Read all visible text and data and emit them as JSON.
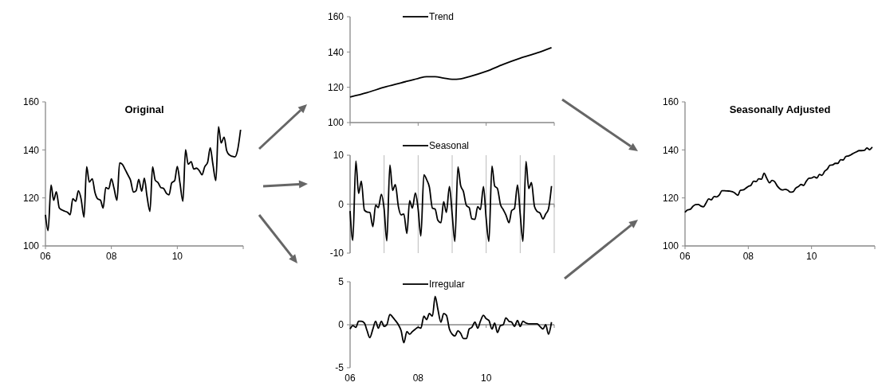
{
  "chart_data": [
    {
      "type": "line",
      "title": "Original",
      "x": [
        2006,
        2006.08,
        2006.17,
        2006.25,
        2006.33,
        2006.42,
        2006.5,
        2006.58,
        2006.67,
        2006.75,
        2006.83,
        2006.92,
        2007,
        2007.08,
        2007.17,
        2007.25,
        2007.33,
        2007.42,
        2007.5,
        2007.58,
        2007.67,
        2007.75,
        2007.83,
        2007.92,
        2008,
        2008.08,
        2008.17,
        2008.25,
        2008.33,
        2008.42,
        2008.5,
        2008.58,
        2008.67,
        2008.75,
        2008.83,
        2008.92,
        2009,
        2009.08,
        2009.17,
        2009.25,
        2009.33,
        2009.42,
        2009.5,
        2009.58,
        2009.67,
        2009.75,
        2009.83,
        2009.92,
        2010,
        2010.08,
        2010.17,
        2010.25,
        2010.33,
        2010.42,
        2010.5,
        2010.58,
        2010.67,
        2010.75,
        2010.83,
        2010.92,
        2011,
        2011.08,
        2011.17,
        2011.25,
        2011.33,
        2011.42,
        2011.5,
        2011.58,
        2011.67,
        2011.75,
        2011.83,
        2011.92
      ],
      "series": [
        {
          "color": "#000000",
          "values": [
            113,
            106.4,
            125.4,
            119,
            122.6,
            115.8,
            115,
            114.5,
            114,
            113,
            119.7,
            118.6,
            123,
            119.7,
            112,
            133,
            126.6,
            128,
            122.4,
            119.7,
            119,
            115.8,
            124.3,
            123.8,
            128,
            124,
            119,
            134.6,
            134,
            131.8,
            129.6,
            127.4,
            122.4,
            123,
            127.7,
            122.8,
            128.2,
            120.8,
            114.4,
            132.9,
            127.4,
            126.3,
            124.3,
            124,
            121.9,
            121.3,
            126.3,
            127.2,
            133.1,
            126.3,
            118.6,
            140.1,
            134,
            135.1,
            132,
            132.4,
            131.3,
            129.6,
            132.9,
            134.8,
            140.9,
            134,
            127.2,
            149.7,
            142.9,
            145.3,
            139.6,
            137.9,
            137.3,
            137.1,
            140,
            148.4
          ]
        }
      ],
      "xlim": [
        2006,
        2012
      ],
      "xticks": [
        {
          "value": 2006,
          "label": "06"
        },
        {
          "value": 2008,
          "label": "08"
        },
        {
          "value": 2010,
          "label": "10"
        },
        {
          "value": 2012,
          "label": null
        }
      ],
      "ylim": [
        100,
        160
      ],
      "yticks": [
        100,
        120,
        140,
        160
      ]
    },
    {
      "type": "line",
      "x": [
        2006,
        2006.5,
        2007,
        2007.5,
        2008,
        2008.25,
        2008.5,
        2008.75,
        2009,
        2009.25,
        2009.5,
        2010,
        2010.5,
        2011,
        2011.5,
        2011.92
      ],
      "series": [
        {
          "name": "Trend",
          "color": "#000000",
          "values": [
            114.5,
            117,
            120,
            122.5,
            125,
            126,
            126,
            125.2,
            124.5,
            124.8,
            126,
            129,
            133,
            136.5,
            139.5,
            142.5
          ]
        }
      ],
      "xlim": [
        2006,
        2012
      ],
      "xticks": [
        {
          "value": 2006,
          "label": null
        },
        {
          "value": 2008,
          "label": null
        },
        {
          "value": 2010,
          "label": null
        },
        {
          "value": 2012,
          "label": null
        }
      ],
      "ylim": [
        100,
        160
      ],
      "yticks": [
        100,
        120,
        140,
        160
      ],
      "legend": "top",
      "tick_labels": "y"
    },
    {
      "type": "line",
      "x": [
        2006,
        2006.08,
        2006.17,
        2006.25,
        2006.33,
        2006.42,
        2006.5,
        2006.58,
        2006.67,
        2006.75,
        2006.83,
        2006.92,
        2007,
        2007.08,
        2007.17,
        2007.25,
        2007.33,
        2007.42,
        2007.5,
        2007.58,
        2007.67,
        2007.75,
        2007.83,
        2007.92,
        2008,
        2008.08,
        2008.17,
        2008.25,
        2008.33,
        2008.42,
        2008.5,
        2008.58,
        2008.67,
        2008.75,
        2008.83,
        2008.92,
        2009,
        2009.08,
        2009.17,
        2009.25,
        2009.33,
        2009.42,
        2009.5,
        2009.58,
        2009.67,
        2009.75,
        2009.83,
        2009.92,
        2010,
        2010.08,
        2010.17,
        2010.25,
        2010.33,
        2010.42,
        2010.5,
        2010.58,
        2010.67,
        2010.75,
        2010.83,
        2010.92,
        2011,
        2011.08,
        2011.17,
        2011.25,
        2011.33,
        2011.42,
        2011.5,
        2011.58,
        2011.67,
        2011.75,
        2011.83,
        2011.92
      ],
      "series": [
        {
          "name": "Seasonal",
          "color": "#000000",
          "values": [
            -1.4,
            -7.4,
            8.8,
            2.2,
            4.7,
            -1.2,
            -1.6,
            -1.7,
            -4.6,
            -0.2,
            -0.7,
            2,
            -1,
            -7.5,
            8,
            2.8,
            4,
            -0.5,
            -2.2,
            -2,
            -6,
            0.7,
            -0.8,
            2.3,
            -1,
            -6.5,
            6,
            5,
            3.5,
            -0.8,
            -1,
            -3.3,
            -3.8,
            0.5,
            -1.7,
            3.6,
            -2,
            -7.6,
            7.6,
            3.8,
            2.6,
            -0.3,
            -0.7,
            -3,
            -3.1,
            -0.5,
            -1.1,
            3.6,
            -3,
            -7.6,
            7.8,
            3.7,
            3.2,
            -0.1,
            -1.1,
            -2.2,
            -3.8,
            -1.3,
            -0.9,
            3.9,
            -2,
            -7.6,
            8.7,
            3.2,
            4.4,
            -0.5,
            -1.5,
            -1.8,
            -3,
            -2,
            -1,
            3.7
          ]
        }
      ],
      "xlim": [
        2006,
        2012
      ],
      "xticks": [
        {
          "value": 2006,
          "label": null
        },
        {
          "value": 2007,
          "label": null
        },
        {
          "value": 2008,
          "label": null
        },
        {
          "value": 2009,
          "label": null
        },
        {
          "value": 2010,
          "label": null
        },
        {
          "value": 2011,
          "label": null
        },
        {
          "value": 2012,
          "label": null
        }
      ],
      "ylim": [
        -10,
        10
      ],
      "yticks": [
        -10,
        0,
        10
      ],
      "legend": "top",
      "grid": "x",
      "tick_labels": "y"
    },
    {
      "type": "line",
      "x": [
        2006,
        2006.08,
        2006.17,
        2006.25,
        2006.33,
        2006.42,
        2006.5,
        2006.58,
        2006.67,
        2006.75,
        2006.83,
        2006.92,
        2007,
        2007.08,
        2007.17,
        2007.25,
        2007.33,
        2007.42,
        2007.5,
        2007.58,
        2007.67,
        2007.75,
        2007.83,
        2007.92,
        2008,
        2008.08,
        2008.17,
        2008.25,
        2008.33,
        2008.42,
        2008.5,
        2008.58,
        2008.67,
        2008.75,
        2008.83,
        2008.92,
        2009,
        2009.08,
        2009.17,
        2009.25,
        2009.33,
        2009.42,
        2009.5,
        2009.58,
        2009.67,
        2009.75,
        2009.83,
        2009.92,
        2010,
        2010.08,
        2010.17,
        2010.25,
        2010.33,
        2010.42,
        2010.5,
        2010.58,
        2010.67,
        2010.75,
        2010.83,
        2010.92,
        2011,
        2011.08,
        2011.17,
        2011.25,
        2011.33,
        2011.42,
        2011.5,
        2011.58,
        2011.67,
        2011.75,
        2011.83,
        2011.92
      ],
      "series": [
        {
          "name": "Irregular",
          "color": "#000000",
          "values": [
            -0.5,
            -0.1,
            -0.3,
            0.4,
            0.4,
            0.2,
            -0.7,
            -1.5,
            -0.5,
            0.4,
            -0.4,
            0.4,
            -0.2,
            0,
            1.2,
            0.9,
            0.5,
            0,
            -0.7,
            -2.1,
            -0.8,
            -1.1,
            -0.8,
            -0.5,
            -0.3,
            -0.4,
            1,
            0.6,
            1.3,
            1,
            3.3,
            1.8,
            0.3,
            1.3,
            1.1,
            -0.5,
            -1.1,
            -1.3,
            -0.7,
            -1,
            -1.6,
            -1.6,
            -0.5,
            -0.3,
            0.3,
            -0.4,
            0.4,
            1.1,
            0.7,
            0.5,
            -0.5,
            0.2,
            -0.9,
            -0.1,
            0,
            0.8,
            0.4,
            0.3,
            -0.2,
            0.5,
            -0.2,
            0.4,
            0.2,
            0.1,
            0.1,
            0.1,
            0.1,
            -0.2,
            -0.5,
            0,
            -1.1,
            0.3
          ]
        }
      ],
      "xlim": [
        2006,
        2012
      ],
      "xticks": [
        {
          "value": 2006,
          "label": "06"
        },
        {
          "value": 2008,
          "label": "08"
        },
        {
          "value": 2010,
          "label": "10"
        },
        {
          "value": 2012,
          "label": null
        }
      ],
      "ylim": [
        -5,
        5
      ],
      "yticks": [
        -5,
        0,
        5
      ],
      "legend": "top"
    },
    {
      "type": "line",
      "title": "Seasonally Adjusted",
      "x": [
        2006,
        2006.08,
        2006.17,
        2006.25,
        2006.33,
        2006.42,
        2006.5,
        2006.58,
        2006.67,
        2006.75,
        2006.83,
        2006.92,
        2007,
        2007.08,
        2007.17,
        2007.25,
        2007.33,
        2007.42,
        2007.5,
        2007.58,
        2007.67,
        2007.75,
        2007.83,
        2007.92,
        2008,
        2008.08,
        2008.17,
        2008.25,
        2008.33,
        2008.42,
        2008.5,
        2008.58,
        2008.67,
        2008.75,
        2008.83,
        2008.92,
        2009,
        2009.08,
        2009.17,
        2009.25,
        2009.33,
        2009.42,
        2009.5,
        2009.58,
        2009.67,
        2009.75,
        2009.83,
        2009.92,
        2010,
        2010.08,
        2010.17,
        2010.25,
        2010.33,
        2010.42,
        2010.5,
        2010.58,
        2010.67,
        2010.75,
        2010.83,
        2010.92,
        2011,
        2011.08,
        2011.17,
        2011.25,
        2011.33,
        2011.42,
        2011.5,
        2011.58,
        2011.67,
        2011.75,
        2011.83,
        2011.92
      ],
      "series": [
        {
          "color": "#000000",
          "values": [
            114,
            115,
            115.3,
            116.5,
            117.2,
            117.3,
            116.6,
            116.3,
            118,
            119.6,
            119.2,
            120.6,
            120.4,
            121.2,
            123,
            123,
            122.9,
            122.8,
            122.6,
            122,
            121.1,
            123.2,
            123.3,
            124,
            124.8,
            125.2,
            127,
            126.8,
            128,
            127.8,
            130.3,
            128.3,
            126.3,
            127.3,
            126.8,
            124.9,
            123.8,
            123.3,
            123.6,
            123.2,
            122.4,
            122.6,
            124.1,
            124.7,
            125.6,
            125.2,
            126.9,
            128.2,
            128.3,
            128.8,
            128.3,
            129.8,
            129.4,
            131.2,
            132,
            133.6,
            133.8,
            134.4,
            134.4,
            135.9,
            135.8,
            137.2,
            137.5,
            138,
            138.6,
            139.2,
            139.7,
            139.7,
            139.8,
            140.8,
            140.1,
            141.2
          ]
        }
      ],
      "xlim": [
        2006,
        2012
      ],
      "xticks": [
        {
          "value": 2006,
          "label": "06"
        },
        {
          "value": 2008,
          "label": "08"
        },
        {
          "value": 2010,
          "label": "10"
        },
        {
          "value": 2012,
          "label": null
        }
      ],
      "ylim": [
        100,
        160
      ],
      "yticks": [
        100,
        120,
        140,
        160
      ]
    }
  ]
}
